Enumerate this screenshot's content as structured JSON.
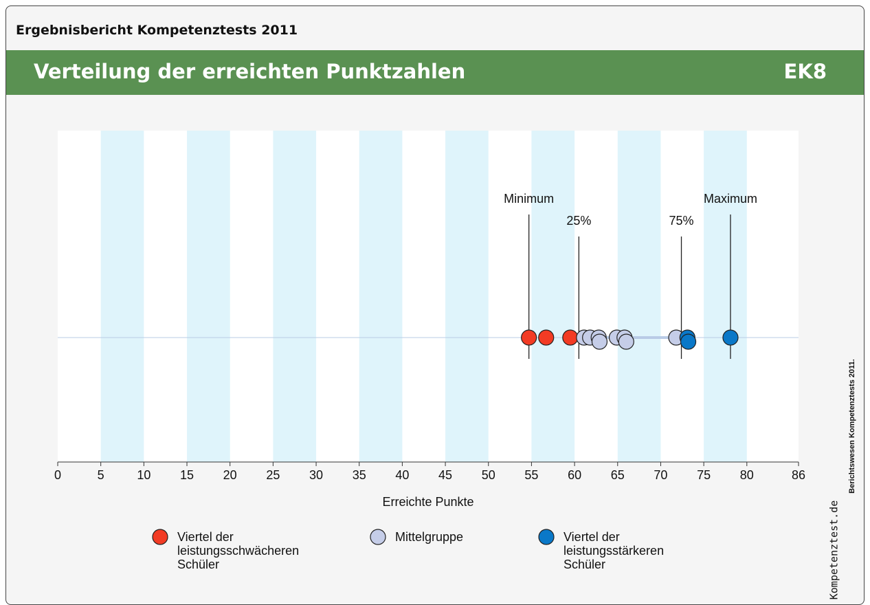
{
  "header": "Ergebnisbericht Kompetenztests 2011",
  "banner": {
    "title": "Verteilung der erreichten Punktzahlen",
    "code": "EK8"
  },
  "side_note": "Berichtswesen Kompetenztests 2011.",
  "logo": "Kompetenztest.de",
  "chart_data": {
    "type": "scatter",
    "xlabel": "Erreichte Punkte",
    "xlim": [
      0,
      86
    ],
    "xticks": [
      0,
      5,
      10,
      15,
      20,
      25,
      30,
      35,
      40,
      45,
      50,
      55,
      60,
      65,
      70,
      75,
      80,
      86
    ],
    "bands": [
      [
        5,
        10
      ],
      [
        15,
        20
      ],
      [
        25,
        30
      ],
      [
        35,
        40
      ],
      [
        45,
        50
      ],
      [
        55,
        60
      ],
      [
        65,
        70
      ],
      [
        75,
        80
      ]
    ],
    "band_color": "#dff4fb",
    "series": [
      {
        "name": "Viertel der leistungsschwächeren Schüler",
        "color": "#f23b24",
        "values": [
          54.7,
          56.7,
          59.5
        ]
      },
      {
        "name": "Mittelgruppe",
        "color": "#c5cde8",
        "values": [
          61.1,
          61.8,
          62.8,
          62.9,
          64.9,
          65.8,
          66.0,
          71.8
        ]
      },
      {
        "name": "Viertel der leistungsstärkeren Schüler",
        "color": "#0a78c8",
        "values": [
          73.1,
          73.2,
          78.1
        ]
      }
    ],
    "markers": [
      {
        "label": "Minimum",
        "value": 54.7
      },
      {
        "label": "25%",
        "value": 60.5
      },
      {
        "label": "75%",
        "value": 72.4
      },
      {
        "label": "Maximum",
        "value": 78.1
      }
    ]
  }
}
